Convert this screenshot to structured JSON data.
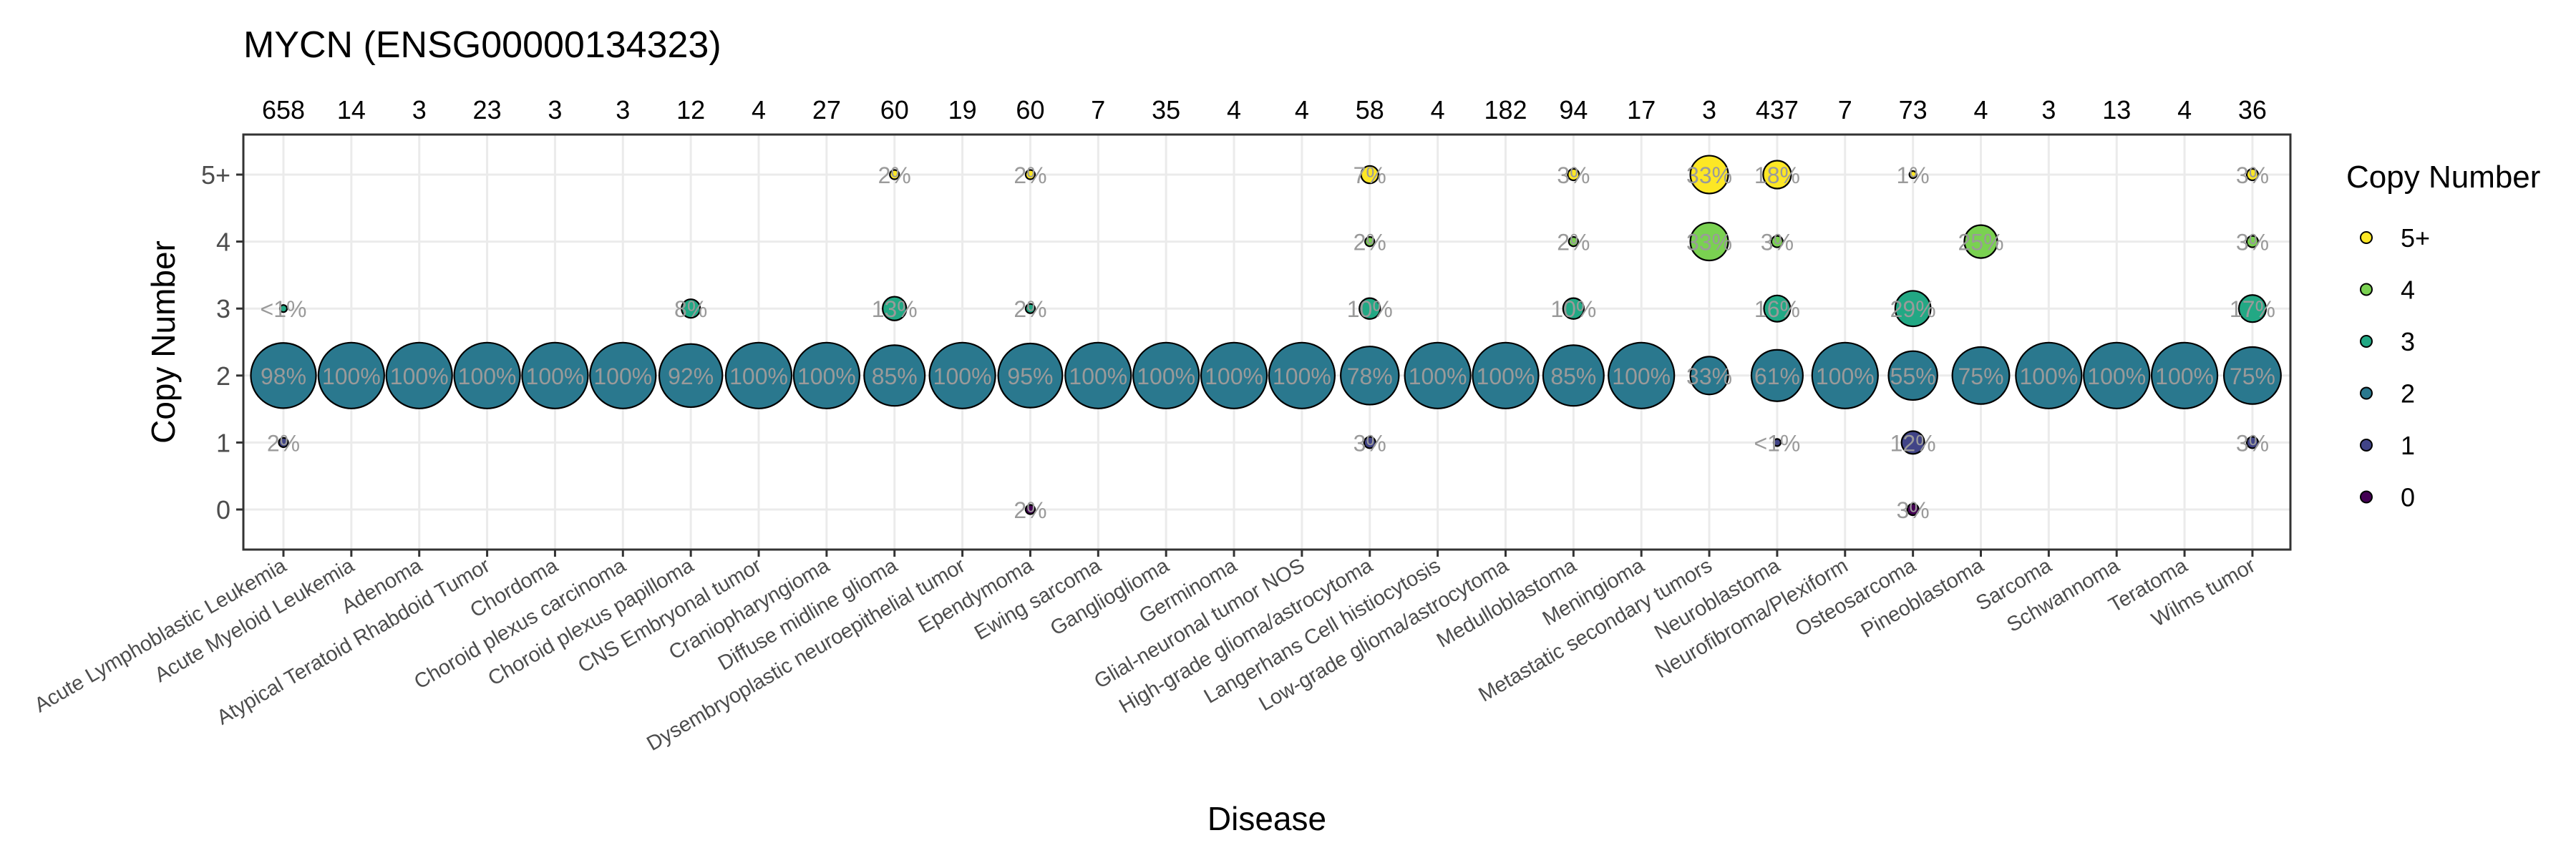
{
  "chart_data": {
    "type": "scatter",
    "title": "MYCN (ENSG00000134323)",
    "xlabel": "Disease",
    "ylabel": "Copy Number",
    "legend_title": "Copy Number",
    "legend_placement": "right",
    "grid": true,
    "y_levels": [
      "0",
      "1",
      "2",
      "3",
      "4",
      "5+"
    ],
    "colors": {
      "5+": "#FDE725",
      "4": "#7AD151",
      "3": "#22A884",
      "2": "#2A788E",
      "1": "#414487",
      "0": "#440154"
    },
    "categories": [
      "Acute Lymphoblastic Leukemia",
      "Acute Myeloid Leukemia",
      "Adenoma",
      "Atypical Teratoid Rhabdoid Tumor",
      "Chordoma",
      "Choroid plexus carcinoma",
      "Choroid plexus papilloma",
      "CNS Embryonal tumor",
      "Craniopharyngioma",
      "Diffuse midline glioma",
      "Dysembryoplastic neuroepithelial tumor",
      "Ependymoma",
      "Ewing sarcoma",
      "Ganglioglioma",
      "Germinoma",
      "Glial-neuronal tumor NOS",
      "High-grade glioma/astrocytoma",
      "Langerhans Cell histiocytosis",
      "Low-grade glioma/astrocytoma",
      "Medulloblastoma",
      "Meningioma",
      "Metastatic secondary tumors",
      "Neuroblastoma",
      "Neurofibroma/Plexiform",
      "Osteosarcoma",
      "Pineoblastoma",
      "Sarcoma",
      "Schwannoma",
      "Teratoma",
      "Wilms tumor"
    ],
    "counts": [
      "658",
      "14",
      "3",
      "23",
      "3",
      "3",
      "12",
      "4",
      "27",
      "60",
      "19",
      "60",
      "7",
      "35",
      "4",
      "4",
      "58",
      "4",
      "182",
      "94",
      "17",
      "3",
      "437",
      "7",
      "73",
      "4",
      "3",
      "13",
      "4",
      "36"
    ],
    "points": [
      {
        "disease": 0,
        "cn": "3",
        "pct": 0.3,
        "label": "<1%"
      },
      {
        "disease": 0,
        "cn": "2",
        "pct": 98,
        "label": "98%"
      },
      {
        "disease": 0,
        "cn": "1",
        "pct": 2,
        "label": "2%"
      },
      {
        "disease": 1,
        "cn": "2",
        "pct": 100,
        "label": "100%"
      },
      {
        "disease": 2,
        "cn": "2",
        "pct": 100,
        "label": "100%"
      },
      {
        "disease": 3,
        "cn": "2",
        "pct": 100,
        "label": "100%"
      },
      {
        "disease": 4,
        "cn": "2",
        "pct": 100,
        "label": "100%"
      },
      {
        "disease": 5,
        "cn": "2",
        "pct": 100,
        "label": "100%"
      },
      {
        "disease": 6,
        "cn": "3",
        "pct": 8,
        "label": "8%"
      },
      {
        "disease": 6,
        "cn": "2",
        "pct": 92,
        "label": "92%"
      },
      {
        "disease": 7,
        "cn": "2",
        "pct": 100,
        "label": "100%"
      },
      {
        "disease": 8,
        "cn": "2",
        "pct": 100,
        "label": "100%"
      },
      {
        "disease": 9,
        "cn": "5+",
        "pct": 2,
        "label": "2%"
      },
      {
        "disease": 9,
        "cn": "3",
        "pct": 13,
        "label": "13%"
      },
      {
        "disease": 9,
        "cn": "2",
        "pct": 85,
        "label": "85%"
      },
      {
        "disease": 10,
        "cn": "2",
        "pct": 100,
        "label": "100%"
      },
      {
        "disease": 11,
        "cn": "5+",
        "pct": 2,
        "label": "2%"
      },
      {
        "disease": 11,
        "cn": "3",
        "pct": 2,
        "label": "2%"
      },
      {
        "disease": 11,
        "cn": "2",
        "pct": 95,
        "label": "95%"
      },
      {
        "disease": 11,
        "cn": "0",
        "pct": 2,
        "label": "2%"
      },
      {
        "disease": 12,
        "cn": "2",
        "pct": 100,
        "label": "100%"
      },
      {
        "disease": 13,
        "cn": "2",
        "pct": 100,
        "label": "100%"
      },
      {
        "disease": 14,
        "cn": "2",
        "pct": 100,
        "label": "100%"
      },
      {
        "disease": 15,
        "cn": "2",
        "pct": 100,
        "label": "100%"
      },
      {
        "disease": 16,
        "cn": "5+",
        "pct": 7,
        "label": "7%"
      },
      {
        "disease": 16,
        "cn": "4",
        "pct": 2,
        "label": "2%"
      },
      {
        "disease": 16,
        "cn": "3",
        "pct": 10,
        "label": "10%"
      },
      {
        "disease": 16,
        "cn": "2",
        "pct": 78,
        "label": "78%"
      },
      {
        "disease": 16,
        "cn": "1",
        "pct": 3,
        "label": "3%"
      },
      {
        "disease": 17,
        "cn": "2",
        "pct": 100,
        "label": "100%"
      },
      {
        "disease": 18,
        "cn": "2",
        "pct": 100,
        "label": "100%"
      },
      {
        "disease": 19,
        "cn": "5+",
        "pct": 3,
        "label": "3%"
      },
      {
        "disease": 19,
        "cn": "4",
        "pct": 2,
        "label": "2%"
      },
      {
        "disease": 19,
        "cn": "3",
        "pct": 10,
        "label": "10%"
      },
      {
        "disease": 19,
        "cn": "2",
        "pct": 85,
        "label": "85%"
      },
      {
        "disease": 20,
        "cn": "2",
        "pct": 100,
        "label": "100%"
      },
      {
        "disease": 21,
        "cn": "5+",
        "pct": 33,
        "label": "33%"
      },
      {
        "disease": 21,
        "cn": "4",
        "pct": 33,
        "label": "33%"
      },
      {
        "disease": 21,
        "cn": "2",
        "pct": 33,
        "label": "33%"
      },
      {
        "disease": 22,
        "cn": "5+",
        "pct": 18,
        "label": "18%"
      },
      {
        "disease": 22,
        "cn": "4",
        "pct": 3,
        "label": "3%"
      },
      {
        "disease": 22,
        "cn": "3",
        "pct": 16,
        "label": "16%"
      },
      {
        "disease": 22,
        "cn": "2",
        "pct": 61,
        "label": "61%"
      },
      {
        "disease": 22,
        "cn": "1",
        "pct": 0.3,
        "label": "<1%"
      },
      {
        "disease": 23,
        "cn": "2",
        "pct": 100,
        "label": "100%"
      },
      {
        "disease": 24,
        "cn": "5+",
        "pct": 1,
        "label": "1%"
      },
      {
        "disease": 24,
        "cn": "3",
        "pct": 29,
        "label": "29%"
      },
      {
        "disease": 24,
        "cn": "2",
        "pct": 55,
        "label": "55%"
      },
      {
        "disease": 24,
        "cn": "1",
        "pct": 12,
        "label": "12%"
      },
      {
        "disease": 24,
        "cn": "0",
        "pct": 3,
        "label": "3%"
      },
      {
        "disease": 25,
        "cn": "4",
        "pct": 25,
        "label": "25%"
      },
      {
        "disease": 25,
        "cn": "2",
        "pct": 75,
        "label": "75%"
      },
      {
        "disease": 26,
        "cn": "2",
        "pct": 100,
        "label": "100%"
      },
      {
        "disease": 27,
        "cn": "2",
        "pct": 100,
        "label": "100%"
      },
      {
        "disease": 28,
        "cn": "2",
        "pct": 100,
        "label": "100%"
      },
      {
        "disease": 29,
        "cn": "5+",
        "pct": 3,
        "label": "3%"
      },
      {
        "disease": 29,
        "cn": "4",
        "pct": 3,
        "label": "3%"
      },
      {
        "disease": 29,
        "cn": "3",
        "pct": 17,
        "label": "17%"
      },
      {
        "disease": 29,
        "cn": "2",
        "pct": 75,
        "label": "75%"
      },
      {
        "disease": 29,
        "cn": "1",
        "pct": 3,
        "label": "3%"
      }
    ]
  }
}
